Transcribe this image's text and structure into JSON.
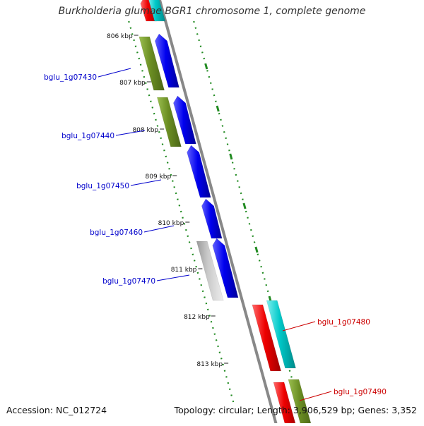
{
  "title": "Burkholderia glumae BGR1 chromosome 1, complete genome",
  "footer": {
    "accession": "Accession: NC_012724",
    "summary": "Topology: circular; Length: 3,906,529 bp; Genes: 3,352"
  },
  "ticks": [
    "806 kbp",
    "807 kbp",
    "808 kbp",
    "809 kbp",
    "810 kbp",
    "811 kbp",
    "812 kbp",
    "813 kbp"
  ],
  "gene_labels": [
    {
      "name": "bglu_1g07430",
      "color": "#0000cc"
    },
    {
      "name": "bglu_1g07440",
      "color": "#0000cc"
    },
    {
      "name": "bglu_1g07450",
      "color": "#0000cc"
    },
    {
      "name": "bglu_1g07460",
      "color": "#0000cc"
    },
    {
      "name": "bglu_1g07470",
      "color": "#0000cc"
    },
    {
      "name": "bglu_1g07480",
      "color": "#cc0000"
    },
    {
      "name": "bglu_1g07490",
      "color": "#cc0000"
    }
  ],
  "colors": {
    "blue_gene": "#1010ee",
    "olive_gene": "#6b8e23",
    "red_gene": "#ee0000",
    "cyan_gene": "#00c8c8",
    "gray_gene": "#b8b8b8",
    "backbone": "#888888",
    "gc_dots": "#228b22"
  }
}
